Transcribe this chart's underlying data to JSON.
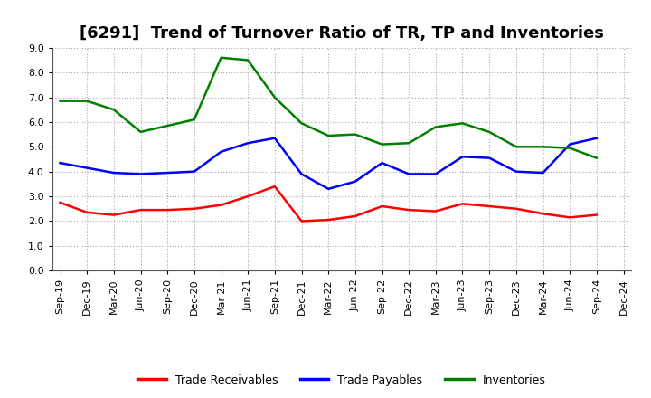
{
  "title": "[6291]  Trend of Turnover Ratio of TR, TP and Inventories",
  "x_labels": [
    "Sep-19",
    "Dec-19",
    "Mar-20",
    "Jun-20",
    "Sep-20",
    "Dec-20",
    "Mar-21",
    "Jun-21",
    "Sep-21",
    "Dec-21",
    "Mar-22",
    "Jun-22",
    "Sep-22",
    "Dec-22",
    "Mar-23",
    "Jun-23",
    "Sep-23",
    "Dec-23",
    "Mar-24",
    "Jun-24",
    "Sep-24",
    "Dec-24"
  ],
  "trade_receivables": [
    2.75,
    2.35,
    2.25,
    2.45,
    2.45,
    2.5,
    2.65,
    3.0,
    3.4,
    2.0,
    2.05,
    2.2,
    2.6,
    2.45,
    2.4,
    2.7,
    2.6,
    2.5,
    2.3,
    2.15,
    2.25,
    null
  ],
  "trade_payables": [
    4.35,
    4.15,
    3.95,
    3.9,
    3.95,
    4.0,
    4.8,
    5.15,
    5.35,
    3.9,
    3.3,
    3.6,
    4.35,
    3.9,
    3.9,
    4.6,
    4.55,
    4.0,
    3.95,
    5.1,
    5.35,
    null
  ],
  "inventories": [
    6.85,
    6.85,
    6.5,
    5.6,
    5.85,
    6.1,
    8.6,
    8.5,
    7.0,
    5.95,
    5.45,
    5.5,
    5.1,
    5.15,
    5.8,
    5.95,
    5.6,
    5.0,
    5.0,
    4.95,
    4.55,
    null
  ],
  "line_color_tr": "#FF0000",
  "line_color_tp": "#0000FF",
  "line_color_inv": "#008000",
  "ylim": [
    0.0,
    9.0
  ],
  "yticks": [
    0.0,
    1.0,
    2.0,
    3.0,
    4.0,
    5.0,
    6.0,
    7.0,
    8.0,
    9.0
  ],
  "legend_labels": [
    "Trade Receivables",
    "Trade Payables",
    "Inventories"
  ],
  "background_color": "#FFFFFF",
  "plot_bg_color": "#FFFFFF",
  "grid_color": "#AAAAAA",
  "title_fontsize": 13,
  "label_fontsize": 9,
  "tick_fontsize": 8
}
